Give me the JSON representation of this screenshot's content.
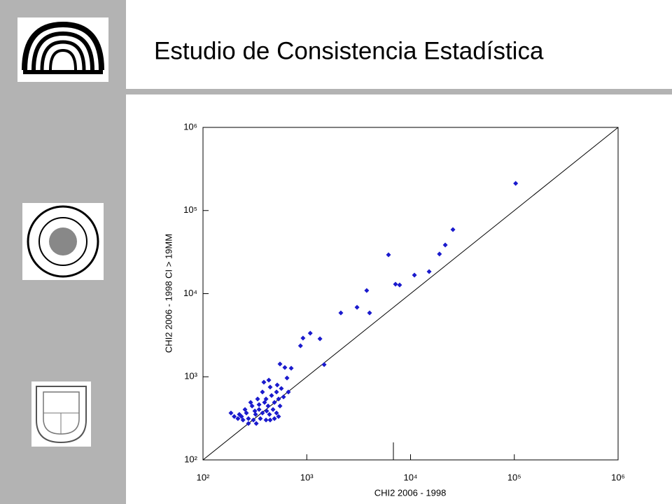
{
  "chart_data": {
    "type": "scatter",
    "title": "Estudio de Consistencia Estadística",
    "x_label": "CHI2 2006 - 1998",
    "y_label": "CHI2 2006 - 1998 CI > 19MM",
    "xscale": "log",
    "yscale": "log",
    "xlim": [
      100,
      1000000
    ],
    "ylim": [
      100,
      1000000
    ],
    "xticks": [
      {
        "value": 100,
        "label": "10²"
      },
      {
        "value": 1000,
        "label": "10³"
      },
      {
        "value": 10000,
        "label": "10⁴"
      },
      {
        "value": 100000,
        "label": "10⁵"
      },
      {
        "value": 1000000,
        "label": "10⁶"
      }
    ],
    "yticks": [
      {
        "value": 100,
        "label": "10²"
      },
      {
        "value": 1000,
        "label": "10³"
      },
      {
        "value": 10000,
        "label": "10⁴"
      },
      {
        "value": 100000,
        "label": "10⁵"
      },
      {
        "value": 1000000,
        "label": "10⁶"
      }
    ],
    "series": [
      {
        "color": "#1a1acd",
        "x": [
          103000,
          25600,
          21600,
          19000,
          15100,
          10900,
          7850,
          7160,
          6130,
          3780,
          4030,
          3050,
          2130,
          1470,
          1340,
          1080,
          920,
          870,
          552,
          615,
          708,
          645,
          519,
          431,
          386,
          444,
          597,
          665,
          535,
          488,
          374,
          405,
          424,
          347,
          297,
          262,
          235,
          217,
          274,
          321,
          374,
          437,
          511,
          552,
          473,
          306,
          357,
          254,
          288,
          336,
          392,
          458,
          511,
          569,
          243,
          224,
          274,
          326,
          405,
          444,
          488,
          535,
          186,
          200,
          347,
          411,
          316
        ],
        "values": [
          212000,
          59000,
          38500,
          30000,
          18400,
          16700,
          12700,
          13000,
          29300,
          10900,
          5860,
          6850,
          5860,
          1400,
          2860,
          3340,
          2920,
          2360,
          1425,
          1293,
          1268,
          967,
          796,
          912,
          861,
          751,
          573,
          656,
          540,
          491,
          656,
          540,
          445,
          404,
          445,
          367,
          333,
          314,
          314,
          353,
          367,
          353,
          367,
          445,
          404,
          302,
          314,
          404,
          491,
          540,
          491,
          595,
          656,
          723,
          302,
          353,
          274,
          274,
          302,
          302,
          314,
          333,
          367,
          333,
          463,
          388,
          388
        ]
      }
    ]
  }
}
